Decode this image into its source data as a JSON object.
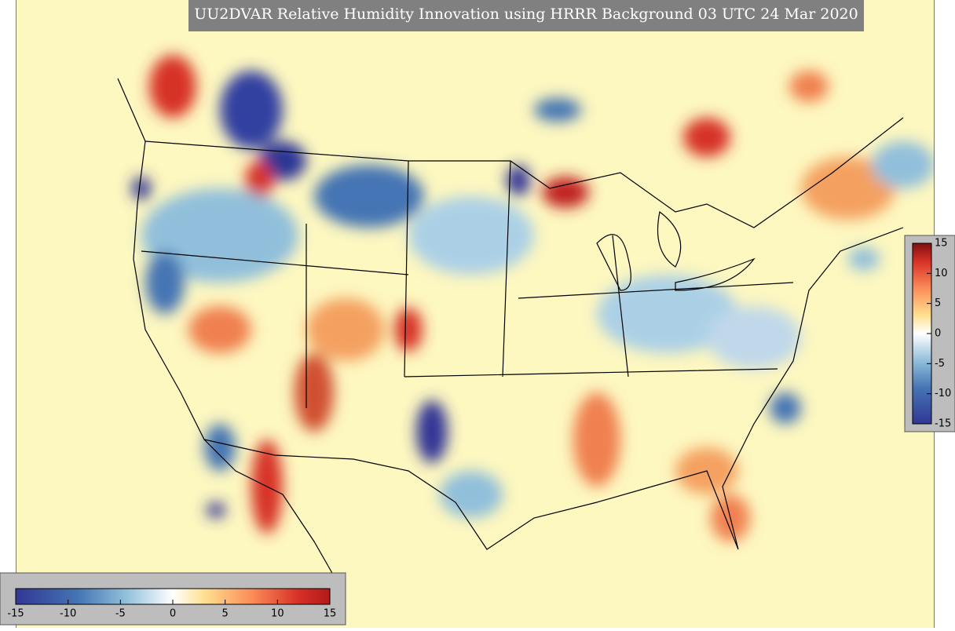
{
  "title": "UU2DVAR Relative Humidity Innovation using HRRR Background 03 UTC 24 Mar 2020",
  "colorbar_right": {
    "lim": [
      -15,
      15
    ],
    "ticks": [
      15,
      10,
      5,
      0,
      -5,
      -10,
      -15
    ]
  },
  "colorbar_bottom": {
    "lim": [
      -15,
      15
    ],
    "ticks": [
      -15,
      -10,
      -5,
      0,
      5,
      10,
      15
    ]
  }
}
